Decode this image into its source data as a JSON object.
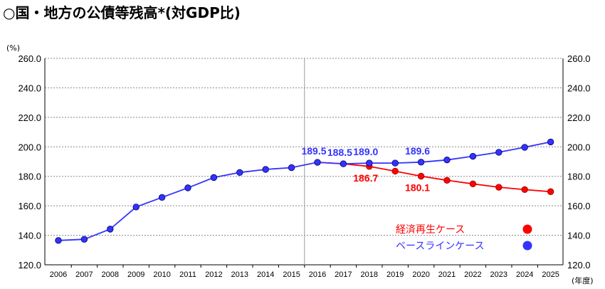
{
  "title": "○国・地方の公債等残高*(対GDP比)",
  "chart_data": {
    "type": "line",
    "title": "○国・地方の公債等残高*(対GDP比)",
    "y_unit_label": "(%)",
    "x_unit_label": "(年度)",
    "ylim": [
      120,
      260
    ],
    "y_ticks": [
      "120.0",
      "140.0",
      "160.0",
      "180.0",
      "200.0",
      "220.0",
      "240.0",
      "260.0"
    ],
    "categories": [
      "2006",
      "2007",
      "2008",
      "2009",
      "2010",
      "2011",
      "2012",
      "2013",
      "2014",
      "2015",
      "2016",
      "2017",
      "2018",
      "2019",
      "2020",
      "2021",
      "2022",
      "2023",
      "2024",
      "2025"
    ],
    "series": [
      {
        "name": "ベースラインケース",
        "color": "#3333ff",
        "values": [
          136.5,
          137.3,
          144.2,
          159.2,
          165.7,
          172.2,
          179.2,
          182.6,
          184.7,
          185.9,
          189.5,
          188.5,
          189.0,
          189.0,
          189.6,
          191.1,
          193.6,
          196.3,
          199.7,
          203.3
        ]
      },
      {
        "name": "経済再生ケース",
        "color": "#ff0000",
        "values": [
          null,
          null,
          null,
          null,
          null,
          null,
          null,
          null,
          null,
          null,
          189.5,
          188.5,
          186.7,
          183.5,
          180.1,
          177.3,
          174.9,
          172.6,
          171.0,
          169.6
        ]
      }
    ],
    "data_labels": [
      {
        "series": "ベースラインケース",
        "category": "2016",
        "text": "189.5"
      },
      {
        "series": "ベースラインケース",
        "category": "2017",
        "text": "188.5"
      },
      {
        "series": "ベースラインケース",
        "category": "2018",
        "text": "189.0"
      },
      {
        "series": "ベースラインケース",
        "category": "2020",
        "text": "189.6"
      },
      {
        "series": "経済再生ケース",
        "category": "2018",
        "text": "186.7"
      },
      {
        "series": "経済再生ケース",
        "category": "2020",
        "text": "180.1"
      }
    ],
    "divider_category": "2016",
    "legend": [
      {
        "name": "経済再生ケース",
        "color": "#ff0000"
      },
      {
        "name": "ベースラインケース",
        "color": "#3333ff"
      }
    ],
    "grid": true,
    "legend_position": "bottom-right"
  }
}
